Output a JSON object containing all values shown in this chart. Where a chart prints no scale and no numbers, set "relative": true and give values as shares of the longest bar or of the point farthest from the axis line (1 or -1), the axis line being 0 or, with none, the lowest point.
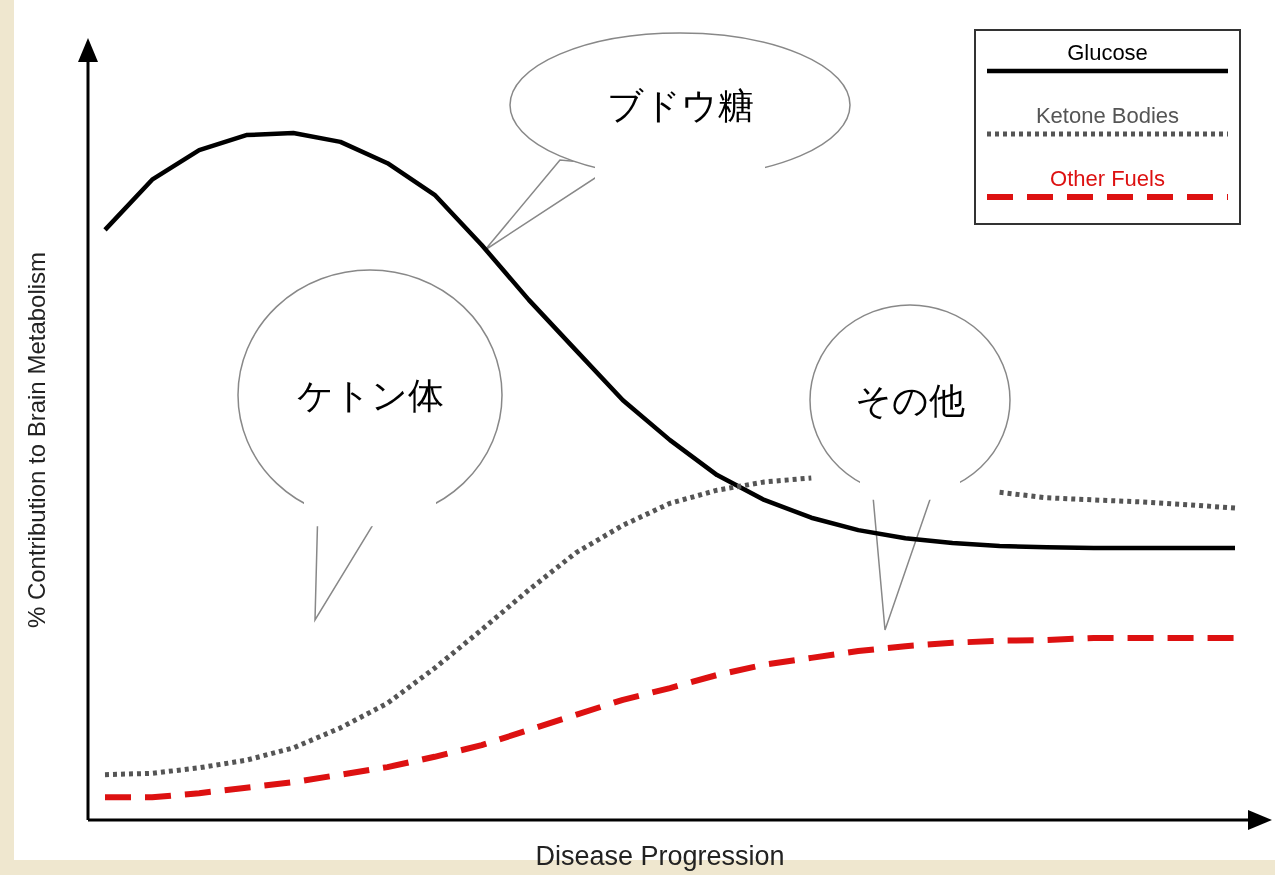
{
  "chart_data": {
    "type": "line",
    "relative": true,
    "xlabel": "Disease Progression",
    "ylabel": "% Contribution to Brain Metabolism",
    "legend": "top right",
    "marker": "none",
    "categories": [
      null,
      null,
      null,
      null,
      null,
      null,
      null,
      null,
      null,
      null,
      null,
      null,
      null,
      null,
      null,
      null,
      null,
      null,
      null,
      null,
      null,
      null,
      null,
      null,
      null
    ],
    "series": [
      {
        "name": "Glucose",
        "color": "#000000",
        "line_style": "solid",
        "values": [
          0.859,
          0.932,
          0.975,
          0.997,
          1,
          0.987,
          0.956,
          0.91,
          0.837,
          0.757,
          0.684,
          0.611,
          0.553,
          0.502,
          0.466,
          0.44,
          0.422,
          0.41,
          0.403,
          0.399,
          0.397,
          0.396,
          0.396,
          0.396,
          0.396
        ]
      },
      {
        "name": "Ketone Bodies",
        "color": "#555555",
        "line_style": "dotted",
        "values": [
          0.066,
          0.068,
          0.076,
          0.087,
          0.105,
          0.134,
          0.17,
          0.221,
          0.277,
          0.335,
          0.389,
          0.429,
          0.461,
          0.48,
          0.492,
          0.498,
          null,
          null,
          null,
          0.477,
          0.469,
          0.466,
          0.463,
          0.459,
          0.454
        ]
      },
      {
        "name": "Other Fuels",
        "color": "#dd1111",
        "line_style": "dashed",
        "values": [
          0.033,
          0.033,
          0.039,
          0.047,
          0.055,
          0.066,
          0.077,
          0.092,
          0.109,
          0.131,
          0.153,
          0.175,
          0.192,
          0.211,
          0.226,
          0.236,
          0.246,
          0.253,
          0.258,
          0.261,
          0.262,
          0.265,
          0.265,
          0.265,
          0.265
        ]
      }
    ],
    "annotations": [
      "ブドウ糖",
      "ケトン体",
      "その他"
    ]
  }
}
